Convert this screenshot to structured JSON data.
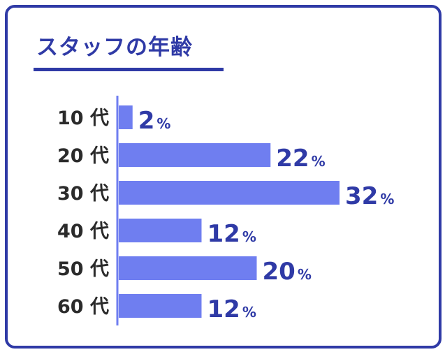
{
  "colors": {
    "accent": "#2f3aa6",
    "bar": "#6f7ef0",
    "axis": "#6f7ef0",
    "label": "#2b2b2b"
  },
  "chart_data": {
    "type": "bar",
    "orientation": "horizontal",
    "title": "スタッフの年齢",
    "categories": [
      "10 代",
      "20 代",
      "30 代",
      "40 代",
      "50 代",
      "60 代"
    ],
    "values": [
      2,
      22,
      32,
      12,
      20,
      12
    ],
    "unit": "%",
    "xlim": [
      0,
      32
    ],
    "grid": false,
    "legend": "none"
  }
}
